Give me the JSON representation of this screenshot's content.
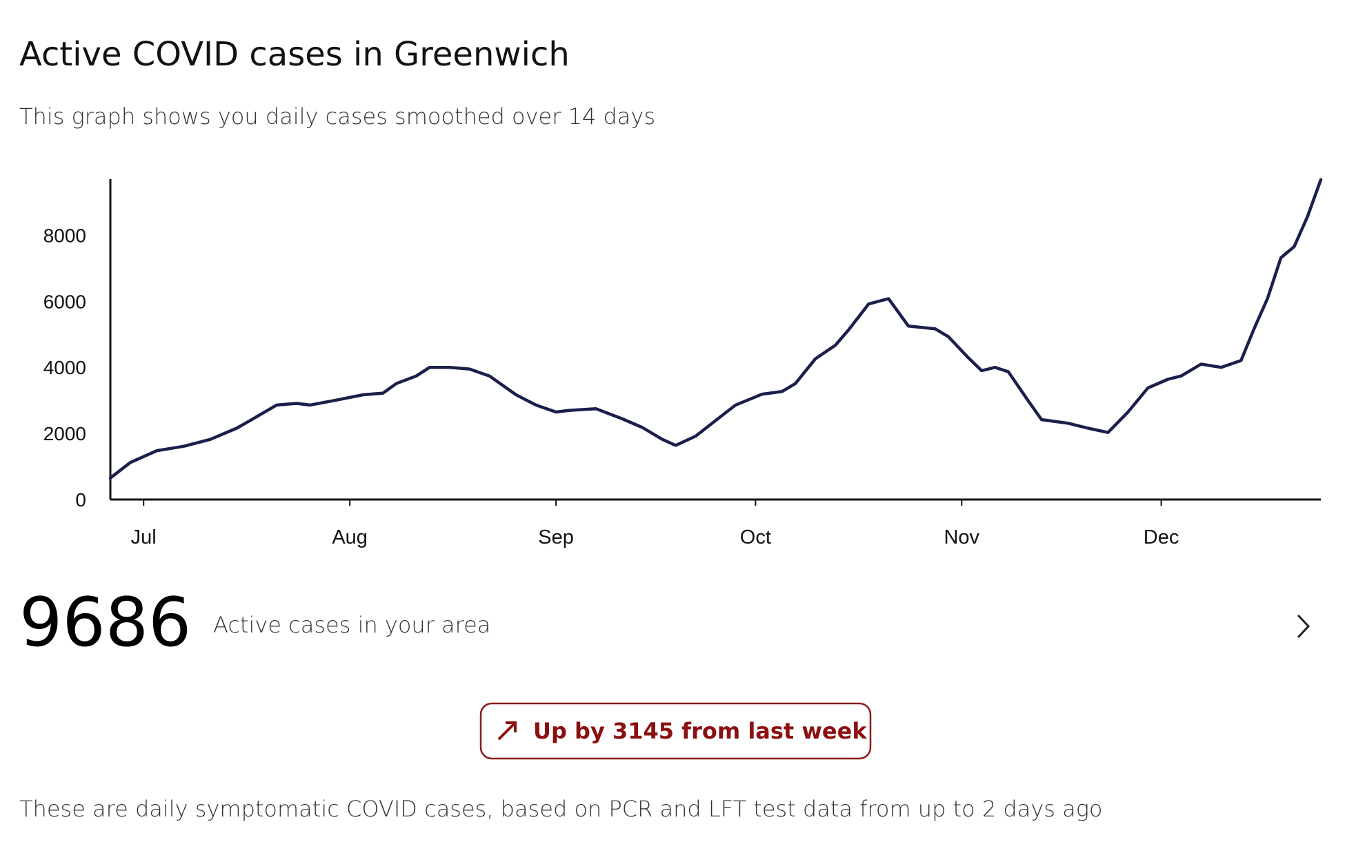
{
  "chart_data": {
    "type": "line",
    "title": "Active COVID cases in Greenwich",
    "subtitle": "This graph shows you daily cases smoothed over 14 days",
    "x": [
      -5,
      -2,
      2,
      6,
      10,
      14,
      16,
      20,
      23,
      25,
      29,
      33,
      36,
      38,
      41,
      43,
      46,
      49,
      52,
      56,
      59,
      62,
      64,
      68,
      72,
      75,
      78,
      80,
      83,
      86,
      89,
      93,
      96,
      98,
      101,
      104,
      106,
      109,
      112,
      115,
      119,
      121,
      124,
      126,
      128,
      130,
      133,
      135,
      139,
      142,
      145,
      148,
      151,
      154,
      156,
      159,
      162,
      165,
      167,
      169,
      171,
      173,
      175,
      177
    ],
    "series": [
      {
        "name": "Active cases",
        "color": "#1b1f4b",
        "values": [
          650,
          1120,
          1480,
          1610,
          1820,
          2160,
          2390,
          2860,
          2910,
          2860,
          3010,
          3170,
          3220,
          3510,
          3740,
          4000,
          4000,
          3950,
          3740,
          3170,
          2860,
          2650,
          2700,
          2750,
          2440,
          2180,
          1820,
          1640,
          1920,
          2390,
          2860,
          3190,
          3270,
          3510,
          4260,
          4670,
          5140,
          5920,
          6080,
          5250,
          5170,
          4930,
          4290,
          3900,
          4000,
          3870,
          2990,
          2420,
          2310,
          2160,
          2030,
          2650,
          3380,
          3640,
          3740,
          4100,
          4000,
          4210,
          5190,
          6100,
          7320,
          7660,
          8570,
          9686
        ]
      }
    ],
    "xlim": [
      -5,
      177
    ],
    "xticks": [
      {
        "value": 0,
        "label": "Jul"
      },
      {
        "value": 31,
        "label": "Aug"
      },
      {
        "value": 62,
        "label": "Sep"
      },
      {
        "value": 92,
        "label": "Oct"
      },
      {
        "value": 123,
        "label": "Nov"
      },
      {
        "value": 153,
        "label": "Dec"
      }
    ],
    "ylim": [
      0,
      9700
    ],
    "yticks": [
      0,
      2000,
      4000,
      6000,
      8000
    ],
    "grid": false
  },
  "summary": {
    "value": 9686,
    "label": "Active cases in your area"
  },
  "change": "Up by 3145 from last week",
  "footnote": "These are daily symptomatic COVID cases, based on PCR and LFT test data from up to 2 days ago"
}
